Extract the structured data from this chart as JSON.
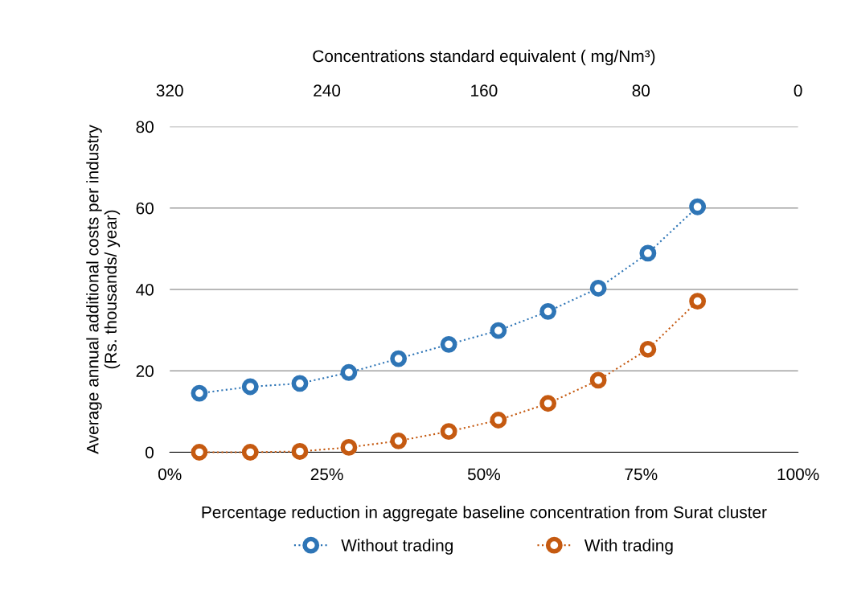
{
  "chart_data": {
    "type": "line",
    "xlabel": "Percentage reduction in aggregate baseline concentration from Surat cluster",
    "ylabel": "Average annual additional costs per industry\n(Rs. thousands/ year)",
    "x2label": "Concentrations standard equivalent ( mg/Nm³)",
    "x": [
      4.7,
      12.8,
      20.7,
      28.5,
      36.4,
      44.4,
      52.3,
      60.2,
      68.2,
      76.1,
      84.0
    ],
    "series": [
      {
        "name": "Without trading",
        "color": "#2e75b6",
        "values": [
          14.5,
          16.1,
          16.9,
          19.6,
          23.0,
          26.5,
          29.9,
          34.6,
          40.3,
          48.9,
          60.3
        ]
      },
      {
        "name": "With trading",
        "color": "#c55a11",
        "values": [
          0,
          0,
          0.2,
          1.2,
          2.8,
          5.1,
          7.9,
          12.0,
          17.7,
          25.3,
          37.1
        ]
      }
    ],
    "xlim": [
      0,
      100
    ],
    "xticks": [
      {
        "value": 0,
        "label": "0%"
      },
      {
        "value": 25,
        "label": "25%"
      },
      {
        "value": 50,
        "label": "50%"
      },
      {
        "value": 75,
        "label": "75%"
      },
      {
        "value": 100,
        "label": "100%"
      }
    ],
    "x2lim": [
      320,
      0
    ],
    "x2ticks": [
      320,
      240,
      160,
      80,
      0
    ],
    "ylim": [
      0,
      80
    ],
    "yticks": [
      0,
      20,
      40,
      60,
      80
    ],
    "grid": "y",
    "legend": "bottom",
    "marker": "circle",
    "line_style": "dotted"
  }
}
